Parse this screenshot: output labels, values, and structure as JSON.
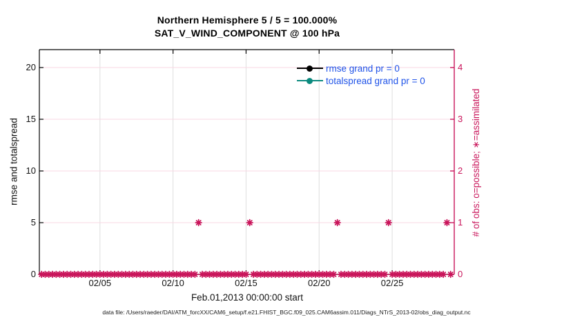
{
  "title": {
    "line1": "Northern Hemisphere 5 / 5 = 100.000%",
    "line2": "SAT_V_WIND_COMPONENT @ 100 hPa"
  },
  "legend": {
    "items": [
      {
        "label": "rmse grand pr = 0",
        "color": "#000000"
      },
      {
        "label": "totalspread grand pr = 0",
        "color": "#0B8A7E"
      }
    ],
    "text_color": "#1F53E8"
  },
  "axes": {
    "left": {
      "label": "rmse and totalspread",
      "ticks": [
        0,
        5,
        10,
        15,
        20
      ],
      "range": [
        0,
        21.7
      ],
      "color": "#000000"
    },
    "right": {
      "label": "# of obs: o=possible; ∗=assimilated",
      "ticks": [
        0,
        1,
        2,
        3,
        4
      ],
      "range": [
        0,
        4.34
      ],
      "color": "#C9145A"
    },
    "x": {
      "label": "Feb.01,2013 00:00:00 start",
      "tick_labels": [
        "02/05",
        "02/10",
        "02/15",
        "02/20",
        "02/25"
      ],
      "tick_days": [
        5,
        10,
        15,
        20,
        25
      ],
      "range_days": [
        0.85,
        29.25
      ]
    }
  },
  "chart_data": {
    "type": "scatter",
    "title": "Northern Hemisphere 5 / 5 = 100.000% — SAT_V_WIND_COMPONENT @ 100 hPa",
    "xlabel": "Feb.01,2013 00:00:00 start",
    "ylabel_left": "rmse and totalspread",
    "ylabel_right": "# of obs: o=possible; ∗=assimilated",
    "grid": true,
    "legend_position": "top-right, no box",
    "series": [
      {
        "name": "rmse grand pr = 0",
        "color": "#000000",
        "values": []
      },
      {
        "name": "totalspread grand pr = 0",
        "color": "#0B8A7E",
        "values": []
      },
      {
        "name": "# of obs (right axis)",
        "color": "#C9145A",
        "marker": "asterisk",
        "bin_start_day": 1.0,
        "bin_end_day": 29.0,
        "bin_step_days": 0.25,
        "days_with_count_1": [
          11.75,
          15.25,
          21.25,
          24.75,
          28.75
        ],
        "count_at_all_other_bins": 0
      }
    ]
  },
  "colors": {
    "crimson": "#C9145A",
    "grid_pink": "#F8D7E3",
    "grid_gray": "#DEDEDE",
    "teal": "#0B8A7E",
    "legend_blue": "#1F53E8",
    "black": "#000000"
  },
  "footer": {
    "text": "data file: /Users/raeder/DAI/ATM_forcXX/CAM6_setup/f.e21.FHIST_BGC.f09_025.CAM6assim.011/Diags_NTrS_2013-02/obs_diag_output.nc"
  }
}
